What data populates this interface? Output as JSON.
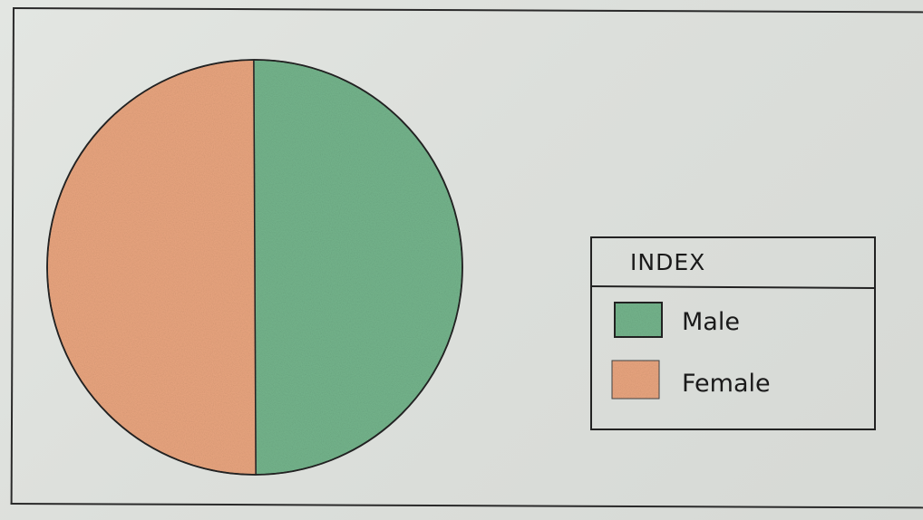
{
  "chart_data": {
    "type": "pie",
    "categories": [
      "Male",
      "Female"
    ],
    "values": [
      50,
      50
    ],
    "colors": {
      "Male": "#74b48c",
      "Female": "#e9a57f"
    },
    "legend": {
      "title": "INDEX",
      "placement": "right",
      "entries": [
        "Male",
        "Female"
      ]
    },
    "title": "",
    "style": "hand-drawn"
  }
}
